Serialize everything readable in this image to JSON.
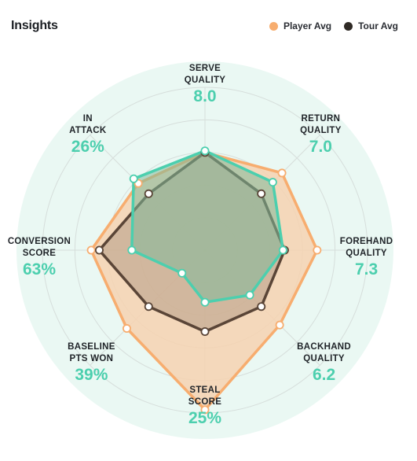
{
  "header": {
    "title": "Insights"
  },
  "legend": [
    {
      "label": "Player Avg",
      "color": "#f7ad6f"
    },
    {
      "label": "Tour Avg",
      "color": "#2f2a25"
    }
  ],
  "colors": {
    "accent": "#4ccfae",
    "background_disc": "#eaf8f3",
    "player_fill": "#f6d2b0",
    "tour_fill": "#8a7260",
    "player_stroke": "#f7ad6f",
    "tour_stroke": "#5a4537",
    "teal_fill": "#7fb99a"
  },
  "chart_data": {
    "type": "radar",
    "axes": [
      {
        "label": [
          "SERVE",
          "QUALITY"
        ],
        "value": "8.0"
      },
      {
        "label": [
          "RETURN",
          "QUALITY"
        ],
        "value": "7.0"
      },
      {
        "label": [
          "FOREHAND",
          "QUALITY"
        ],
        "value": "7.3"
      },
      {
        "label": [
          "BACKHAND",
          "QUALITY"
        ],
        "value": "6.2"
      },
      {
        "label": [
          "STEAL",
          "SCORE"
        ],
        "value": "25%"
      },
      {
        "label": [
          "BASELINE",
          "PTS WON"
        ],
        "value": "39%"
      },
      {
        "label": [
          "CONVERSION",
          "SCORE"
        ],
        "value": "63%"
      },
      {
        "label": [
          "IN",
          "ATTACK"
        ],
        "value": "26%"
      }
    ],
    "range": [
      0,
      1
    ],
    "series": [
      {
        "name": "Player Avg",
        "values": [
          0.6,
          0.67,
          0.69,
          0.65,
          0.98,
          0.68,
          0.7,
          0.58
        ]
      },
      {
        "name": "Tour Avg",
        "values": [
          0.6,
          0.49,
          0.49,
          0.49,
          0.5,
          0.49,
          0.65,
          0.49
        ]
      },
      {
        "name": "",
        "values": [
          0.61,
          0.59,
          0.48,
          0.39,
          0.32,
          0.2,
          0.45,
          0.62
        ]
      }
    ]
  }
}
